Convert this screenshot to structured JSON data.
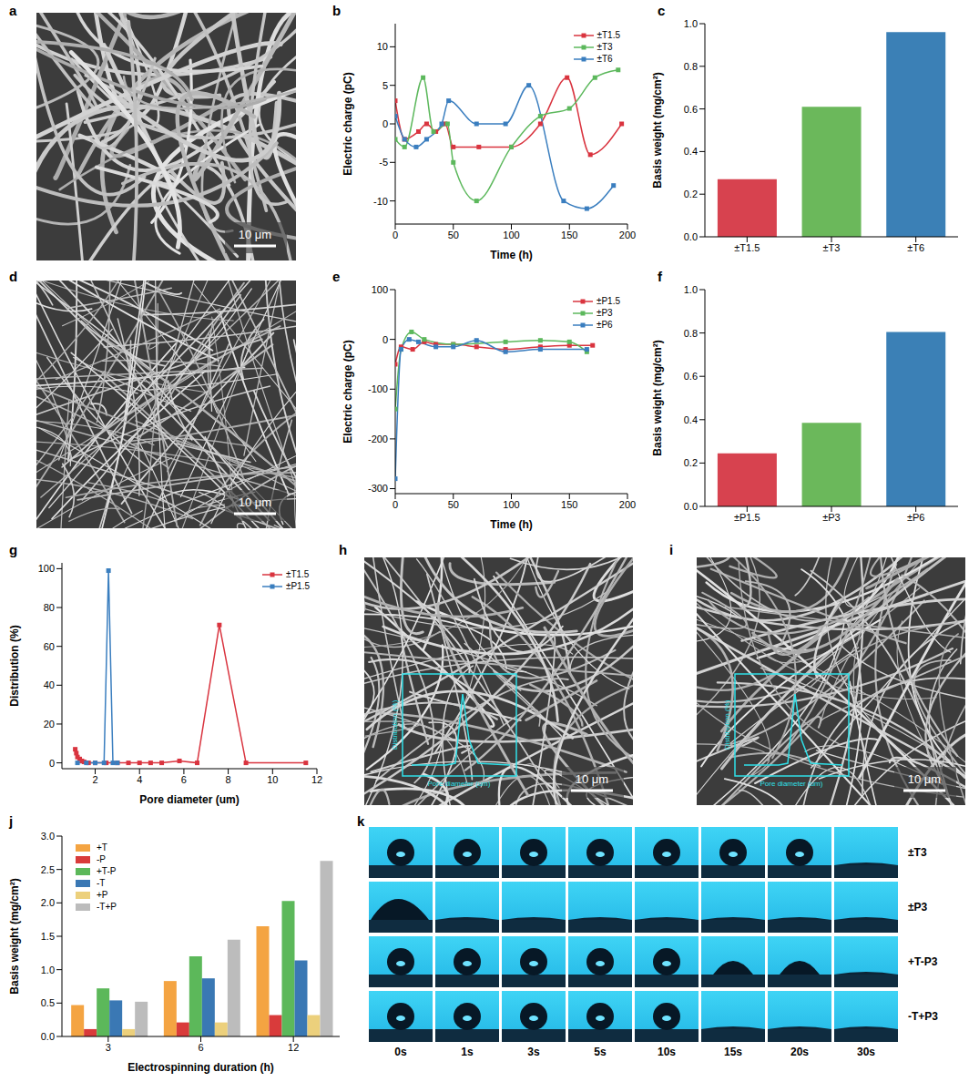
{
  "chart_data": [
    {
      "panel": "b",
      "type": "line",
      "x_label": "Time (h)",
      "y_label": "Electric charge (pC)",
      "xlim": [
        0,
        200
      ],
      "xticks": [
        0,
        50,
        100,
        150,
        200
      ],
      "ylim": [
        -13,
        13
      ],
      "yticks": [
        -10,
        -5,
        0,
        5,
        10
      ],
      "grid": false,
      "legend": "upper right",
      "line_style": "smooth",
      "marker": "square",
      "series": [
        {
          "name": "±T1.5",
          "color": "#d9343f",
          "x": [
            0,
            8,
            20,
            27,
            35,
            43,
            50,
            72,
            100,
            125,
            148,
            168,
            195
          ],
          "values": [
            3,
            -2,
            -1,
            0,
            -1,
            0,
            -3,
            -3,
            -3,
            0,
            6,
            -4,
            0
          ]
        },
        {
          "name": "±T3",
          "color": "#5cb85c",
          "x": [
            0,
            8,
            24,
            33,
            45,
            50,
            70,
            100,
            125,
            150,
            172,
            192
          ],
          "values": [
            -2,
            -3,
            6,
            -1,
            0,
            -5,
            -10,
            -3,
            1,
            2,
            6,
            7
          ]
        },
        {
          "name": "±T6",
          "color": "#3a7ebf",
          "x": [
            0,
            8,
            18,
            27,
            40,
            46,
            70,
            95,
            115,
            145,
            165,
            188
          ],
          "values": [
            1,
            -2,
            -3,
            -2,
            0,
            3,
            0,
            0,
            5,
            -10,
            -11,
            -8
          ]
        }
      ]
    },
    {
      "panel": "c",
      "type": "bar",
      "y_label": "Basis weight (mg/cm²)",
      "categories": [
        "±T1.5",
        "±T3",
        "±T6"
      ],
      "values": [
        0.27,
        0.61,
        0.96
      ],
      "colors": [
        "#d7424f",
        "#6bb85b",
        "#3b80b6"
      ],
      "ylim": [
        0,
        1
      ],
      "yticks": [
        {
          "value": 0,
          "label": "0.0"
        },
        0.2,
        0.4,
        0.6,
        0.8,
        {
          "value": 1,
          "label": "1.0"
        }
      ],
      "grid": false
    },
    {
      "panel": "e",
      "type": "line",
      "x_label": "Time (h)",
      "y_label": "Electric charge (pC)",
      "xlim": [
        0,
        200
      ],
      "xticks": [
        0,
        50,
        100,
        150,
        200
      ],
      "ylim": [
        -310,
        100
      ],
      "yticks": [
        -300,
        -200,
        -100,
        0,
        100
      ],
      "grid": false,
      "legend": "upper right",
      "line_style": "smooth",
      "marker": "square",
      "series": [
        {
          "name": "±P1.5",
          "color": "#d9343f",
          "x": [
            0,
            5,
            15,
            25,
            35,
            50,
            70,
            95,
            125,
            150,
            170
          ],
          "values": [
            -50,
            -15,
            -20,
            -5,
            -10,
            -10,
            -15,
            -20,
            -15,
            -12,
            -12
          ]
        },
        {
          "name": "±P3",
          "color": "#5cb85c",
          "x": [
            0,
            5,
            14,
            25,
            50,
            95,
            125,
            150,
            165
          ],
          "values": [
            -140,
            -20,
            15,
            0,
            -10,
            -5,
            -2,
            -5,
            -25
          ]
        },
        {
          "name": "±P6",
          "color": "#3a7ebf",
          "x": [
            0,
            5,
            12,
            20,
            35,
            50,
            70,
            95,
            125,
            165
          ],
          "values": [
            -280,
            -20,
            0,
            -5,
            -15,
            -15,
            -2,
            -25,
            -20,
            -20
          ]
        }
      ]
    },
    {
      "panel": "f",
      "type": "bar",
      "y_label": "Basis weight (mg/cm²)",
      "categories": [
        "±P1.5",
        "±P3",
        "±P6"
      ],
      "values": [
        0.245,
        0.385,
        0.805
      ],
      "colors": [
        "#d7424f",
        "#6bb85b",
        "#3b80b6"
      ],
      "ylim": [
        0,
        1
      ],
      "yticks": [
        {
          "value": 0,
          "label": "0.0"
        },
        0.2,
        0.4,
        0.6,
        0.8,
        {
          "value": 1,
          "label": "1.0"
        }
      ],
      "grid": false
    },
    {
      "panel": "g",
      "type": "line",
      "x_label": "Pore diameter (um)",
      "y_label": "Distribution (%)",
      "xlim": [
        0.5,
        12
      ],
      "xticks": [
        2,
        4,
        6,
        8,
        10,
        12
      ],
      "ylim": [
        -3,
        103
      ],
      "yticks": [
        0,
        20,
        40,
        60,
        80,
        100
      ],
      "grid": false,
      "legend": "upper right",
      "line_style": "solid",
      "marker": "square",
      "series": [
        {
          "name": "±T1.5",
          "color": "#d9343f",
          "x": [
            1.1,
            1.15,
            1.2,
            1.3,
            1.4,
            1.5,
            1.7,
            2.0,
            2.5,
            3.0,
            3.5,
            4.0,
            4.5,
            5.0,
            5.8,
            6.6,
            7.6,
            8.8,
            11.5
          ],
          "values": [
            7,
            5,
            3,
            2,
            1,
            0.5,
            0,
            0,
            0,
            0,
            0,
            0,
            0,
            0,
            1,
            0,
            71,
            0,
            0
          ]
        },
        {
          "name": "±P1.5",
          "color": "#3a7ebf",
          "x": [
            1.2,
            1.6,
            2.0,
            2.4,
            2.6,
            2.8,
            3.0
          ],
          "values": [
            0,
            0,
            0,
            0,
            99,
            0,
            0
          ]
        }
      ]
    },
    {
      "panel": "j",
      "type": "bar",
      "x_label": "Electrospinning duration (h)",
      "y_label": "Basis weight (mg/cm²)",
      "categories": [
        3,
        6,
        12
      ],
      "ylim": [
        0,
        3
      ],
      "yticks": [
        {
          "value": 0,
          "label": "0.0"
        },
        0.5,
        {
          "value": 1,
          "label": "1.0"
        },
        1.5,
        {
          "value": 2,
          "label": "2.0"
        },
        2.5,
        {
          "value": 3,
          "label": "3.0"
        }
      ],
      "grid": false,
      "legend": "upper left",
      "series": [
        {
          "name": "+T",
          "color": "#f4a442",
          "values": [
            0.47,
            0.83,
            1.65
          ]
        },
        {
          "name": "-P",
          "color": "#d93b3b",
          "values": [
            0.11,
            0.21,
            0.32
          ]
        },
        {
          "name": "+T-P",
          "color": "#5cb85a",
          "values": [
            0.72,
            1.2,
            2.03
          ]
        },
        {
          "name": "-T",
          "color": "#3a78b4",
          "values": [
            0.54,
            0.87,
            1.14
          ]
        },
        {
          "name": "+P",
          "color": "#ecd07c",
          "values": [
            0.11,
            0.21,
            0.32
          ]
        },
        {
          "name": "-T+P",
          "color": "#bcbcbc",
          "values": [
            0.52,
            1.45,
            2.63
          ]
        }
      ]
    }
  ],
  "images": [
    {
      "panel": "a",
      "scale_bar": "10 μm"
    },
    {
      "panel": "d",
      "scale_bar": "10 μm"
    },
    {
      "panel": "h",
      "scale_bar": "10 μm",
      "inset": {
        "x_label": "Pore diameter (um)",
        "y_label": "Distribution (%)"
      }
    },
    {
      "panel": "i",
      "scale_bar": "10 μm",
      "inset": {
        "x_label": "Pore diameter (um)",
        "y_label": "Distribution (%)"
      }
    }
  ],
  "droplets": {
    "panel": "k",
    "rows": [
      "±T3",
      "±P3",
      "+T-P3",
      "-T+P3"
    ],
    "times": [
      "0s",
      "1s",
      "3s",
      "5s",
      "10s",
      "15s",
      "20s",
      "30s"
    ]
  }
}
